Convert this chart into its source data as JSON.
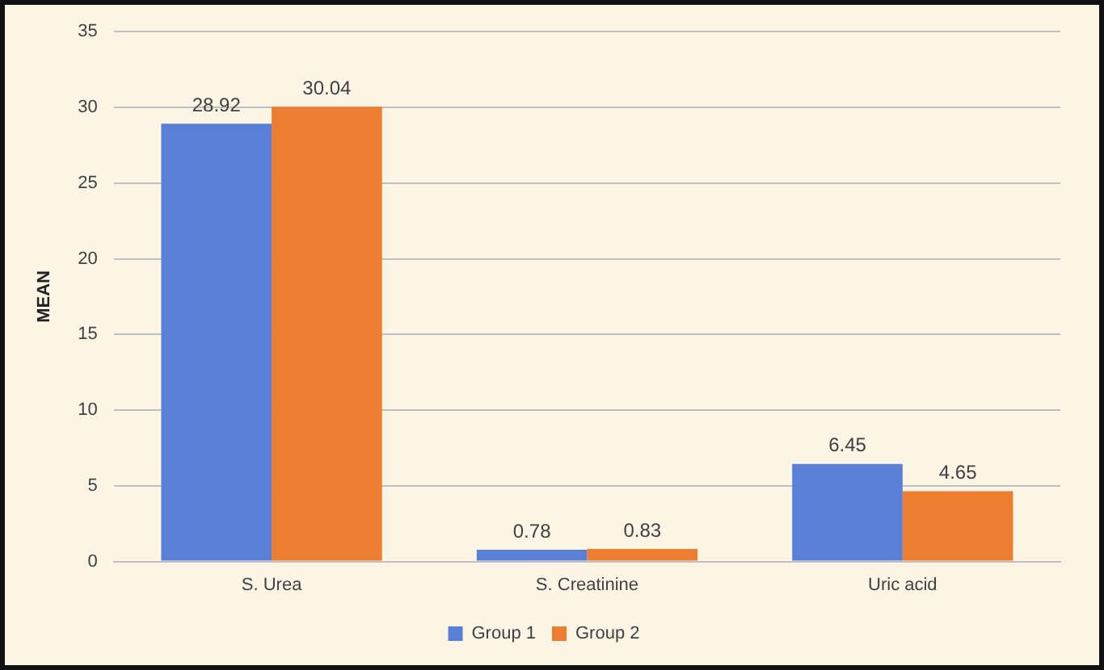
{
  "chart_data": {
    "type": "bar",
    "ylabel": "MEAN",
    "categories": [
      "S. Urea",
      "S. Creatinine",
      "Uric acid"
    ],
    "series": [
      {
        "name": "Group 1",
        "color": "#5a7fd6",
        "values": [
          28.92,
          0.78,
          6.45
        ]
      },
      {
        "name": "Group 2",
        "color": "#ed7d31",
        "values": [
          30.04,
          0.83,
          4.65
        ]
      }
    ],
    "ylim": [
      0,
      35
    ],
    "yticks": [
      0,
      5,
      10,
      15,
      20,
      25,
      30,
      35
    ],
    "grid": "y",
    "legend": "bottom",
    "data_labels": true
  }
}
